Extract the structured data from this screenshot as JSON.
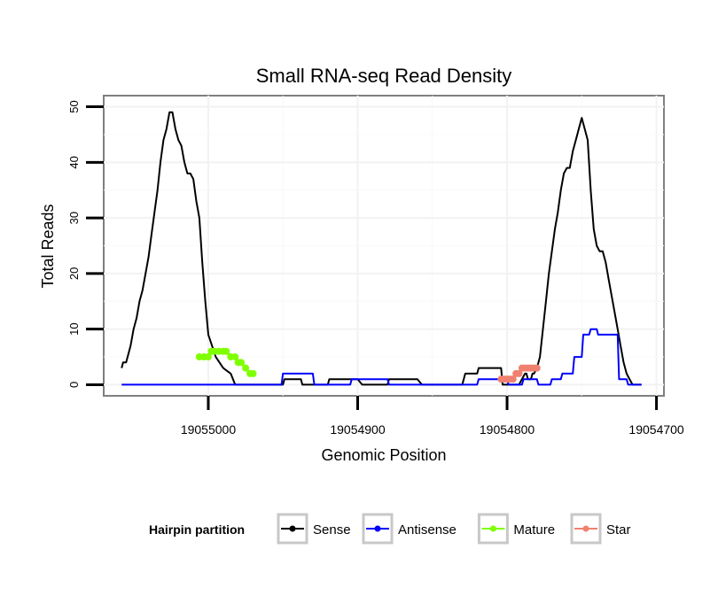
{
  "chart_data": {
    "type": "line",
    "title": "Small RNA-seq Read Density",
    "xlabel": "Genomic Position",
    "ylabel": "Total Reads",
    "xlim": [
      19055070,
      19054695
    ],
    "ylim": [
      -2,
      52
    ],
    "x_reversed": true,
    "grid": true,
    "x_ticks": [
      19055000,
      19054900,
      19054800,
      19054700
    ],
    "x_tick_labels": [
      "19055000",
      "19054900",
      "19054800",
      "19054700"
    ],
    "y_ticks": [
      0,
      10,
      20,
      30,
      40,
      50
    ],
    "y_tick_labels": [
      "0",
      "10",
      "20",
      "30",
      "40",
      "50"
    ],
    "legend": {
      "title": "Hairpin partition",
      "position": "bottom",
      "entries": [
        "Sense",
        "Antisense",
        "Mature",
        "Star"
      ]
    },
    "series": [
      {
        "name": "Sense",
        "color": "#000000",
        "style": "line",
        "x": [
          19055058,
          19055057,
          19055055,
          19055052,
          19055050,
          19055048,
          19055046,
          19055044,
          19055042,
          19055040,
          19055038,
          19055036,
          19055034,
          19055032,
          19055030,
          19055028,
          19055026,
          19055024,
          19055022,
          19055020,
          19055018,
          19055016,
          19055014,
          19055012,
          19055010,
          19055008,
          19055006,
          19055004,
          19055002,
          19055000,
          19054995,
          19054990,
          19054985,
          19054982,
          19054950,
          19054949,
          19054938,
          19054937,
          19054920,
          19054919,
          19054900,
          19054897,
          19054880,
          19054879,
          19054860,
          19054857,
          19054830,
          19054828,
          19054820,
          19054819,
          19054804,
          19054803,
          19054792,
          19054788,
          19054787,
          19054786,
          19054784,
          19054783,
          19054782,
          19054780,
          19054778,
          19054776,
          19054774,
          19054772,
          19054770,
          19054768,
          19054766,
          19054764,
          19054762,
          19054760,
          19054758,
          19054756,
          19054754,
          19054752,
          19054750,
          19054748,
          19054746,
          19054744,
          19054742,
          19054740,
          19054738,
          19054736,
          19054734,
          19054732,
          19054730,
          19054728,
          19054726,
          19054724,
          19054722,
          19054720,
          19054718,
          19054716,
          19054714,
          19054712,
          19054710
        ],
        "y": [
          3,
          4,
          4,
          7,
          10,
          12,
          15,
          17,
          20,
          23,
          27,
          31,
          35,
          40,
          44,
          46,
          49,
          49,
          46,
          44,
          43,
          40,
          38,
          38,
          37,
          33,
          30,
          22,
          15,
          9,
          5,
          3,
          2,
          0,
          0,
          1,
          1,
          0,
          0,
          1,
          1,
          0,
          0,
          1,
          1,
          0,
          0,
          2,
          2,
          3,
          3,
          0,
          0,
          2,
          2,
          1,
          1,
          2,
          2,
          3,
          5,
          10,
          15,
          20,
          24,
          28,
          31,
          35,
          38,
          39,
          39,
          42,
          44,
          46,
          48,
          46,
          44,
          35,
          28,
          25,
          24,
          24,
          22,
          19,
          16,
          13,
          10,
          7,
          4,
          2,
          1,
          0,
          0,
          0,
          0
        ]
      },
      {
        "name": "Antisense",
        "color": "#0000ff",
        "style": "line",
        "x": [
          19055058,
          19054951,
          19054950,
          19054930,
          19054929,
          19054905,
          19054904,
          19054880,
          19054879,
          19054820,
          19054819,
          19054800,
          19054799,
          19054790,
          19054789,
          19054780,
          19054779,
          19054771,
          19054770,
          19054764,
          19054763,
          19054756,
          19054755,
          19054750,
          19054749,
          19054745,
          19054744,
          19054740,
          19054739,
          19054730,
          19054729,
          19054726,
          19054725,
          19054720,
          19054719,
          19054715,
          19054714,
          19054710
        ],
        "y": [
          0,
          0,
          2,
          2,
          0,
          0,
          1,
          1,
          0,
          0,
          1,
          1,
          0,
          0,
          1,
          1,
          0,
          0,
          1,
          1,
          2,
          2,
          5,
          5,
          9,
          9,
          10,
          10,
          9,
          9,
          9,
          9,
          1,
          1,
          0,
          0,
          0,
          0
        ]
      },
      {
        "name": "Mature",
        "color": "#7fff00",
        "style": "points",
        "x": [
          19055006,
          19055003,
          19055000,
          19054998,
          19054996,
          19054993,
          19054990,
          19054988,
          19054985,
          19054982,
          19054980,
          19054978,
          19054975,
          19054972,
          19054970
        ],
        "y": [
          5,
          5,
          5,
          6,
          6,
          6,
          6,
          6,
          5,
          5,
          4,
          4,
          3,
          2,
          2
        ]
      },
      {
        "name": "Star",
        "color": "#f08070",
        "style": "points",
        "x": [
          19054804,
          19054802,
          19054800,
          19054798,
          19054796,
          19054794,
          19054792,
          19054790,
          19054788,
          19054786,
          19054784,
          19054782,
          19054780
        ],
        "y": [
          1,
          1,
          1,
          1,
          1,
          2,
          2,
          3,
          3,
          3,
          3,
          3,
          3
        ]
      }
    ]
  }
}
